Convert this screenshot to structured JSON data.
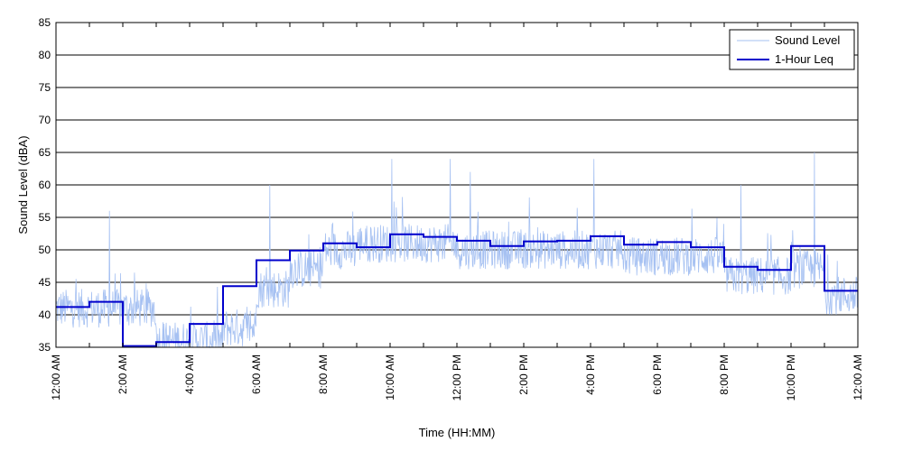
{
  "chart_data": {
    "type": "line",
    "xlabel": "Time (HH:MM)",
    "ylabel": "Sound Level (dBA)",
    "xlim": [
      0,
      24
    ],
    "ylim": [
      35,
      85
    ],
    "yticks": [
      35,
      40,
      45,
      50,
      55,
      60,
      65,
      70,
      75,
      80,
      85
    ],
    "xticks": [
      {
        "hour": 0,
        "label": "12:00 AM"
      },
      {
        "hour": 2,
        "label": "2:00 AM"
      },
      {
        "hour": 4,
        "label": "4:00 AM"
      },
      {
        "hour": 6,
        "label": "6:00 AM"
      },
      {
        "hour": 8,
        "label": "8:00 AM"
      },
      {
        "hour": 10,
        "label": "10:00 AM"
      },
      {
        "hour": 12,
        "label": "12:00 PM"
      },
      {
        "hour": 14,
        "label": "2:00 PM"
      },
      {
        "hour": 16,
        "label": "4:00 PM"
      },
      {
        "hour": 18,
        "label": "6:00 PM"
      },
      {
        "hour": 20,
        "label": "8:00 PM"
      },
      {
        "hour": 22,
        "label": "10:00 PM"
      },
      {
        "hour": 24,
        "label": "12:00 AM"
      }
    ],
    "grid": "horizontal",
    "legend_position": "top-right",
    "colors": {
      "sound_level": "#a6c1f2",
      "leq": "#0000cc"
    },
    "series": [
      {
        "name": "Sound Level",
        "style": "thin-noisy",
        "approx_baseline_by_hour": [
          41,
          41,
          41,
          36,
          36,
          38,
          44,
          47,
          50,
          51,
          51,
          51,
          50,
          50,
          50,
          50,
          50,
          49,
          49,
          49,
          46,
          46,
          47,
          43
        ],
        "notable_peaks": [
          {
            "hour": 1.6,
            "value": 56
          },
          {
            "hour": 6.4,
            "value": 60
          },
          {
            "hour": 10.05,
            "value": 64
          },
          {
            "hour": 11.8,
            "value": 64
          },
          {
            "hour": 12.4,
            "value": 62
          },
          {
            "hour": 16.1,
            "value": 64
          },
          {
            "hour": 20.5,
            "value": 60
          },
          {
            "hour": 22.7,
            "value": 65
          }
        ]
      },
      {
        "name": "1-Hour Leq",
        "style": "step",
        "values": [
          41.2,
          42.0,
          35.2,
          35.8,
          38.6,
          44.4,
          48.4,
          49.9,
          51.0,
          50.4,
          52.4,
          52.0,
          51.4,
          50.6,
          51.3,
          51.4,
          52.1,
          50.8,
          51.2,
          50.4,
          47.4,
          46.9,
          50.6,
          43.7
        ]
      }
    ]
  }
}
